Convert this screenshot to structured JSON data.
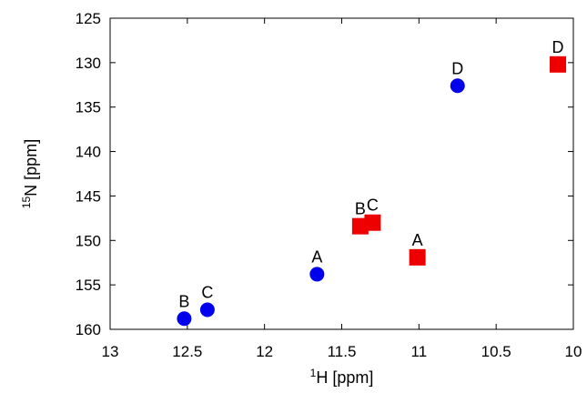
{
  "chart_data": {
    "type": "scatter",
    "title": "",
    "xlabel": {
      "sup": "1",
      "main": "H [ppm]"
    },
    "ylabel": {
      "sup": "15",
      "main": "N [ppm]"
    },
    "xlim": [
      13,
      10
    ],
    "ylim": [
      160,
      125
    ],
    "x_reversed": true,
    "y_reversed": true,
    "x_ticks": [
      13,
      12.5,
      12,
      11.5,
      11,
      10.5,
      10
    ],
    "x_tick_labels": [
      "13",
      "12.5",
      "12",
      "11.5",
      "11",
      "10.5",
      "10"
    ],
    "y_ticks": [
      125,
      130,
      135,
      140,
      145,
      150,
      155,
      160
    ],
    "y_tick_labels": [
      "125",
      "130",
      "135",
      "140",
      "145",
      "150",
      "155",
      "160"
    ],
    "grid": false,
    "legend": "none",
    "series": [
      {
        "marker": "circle",
        "color": "#0000ee",
        "points": [
          {
            "label": "B",
            "x": 12.52,
            "y": 158.8
          },
          {
            "label": "C",
            "x": 12.37,
            "y": 157.8
          },
          {
            "label": "A",
            "x": 11.66,
            "y": 153.8
          },
          {
            "label": "D",
            "x": 10.75,
            "y": 132.6
          }
        ]
      },
      {
        "marker": "square",
        "color": "#ee0000",
        "points": [
          {
            "label": "B",
            "x": 11.38,
            "y": 148.4
          },
          {
            "label": "C",
            "x": 11.3,
            "y": 148.0
          },
          {
            "label": "A",
            "x": 11.01,
            "y": 151.9
          },
          {
            "label": "D",
            "x": 10.1,
            "y": 130.2
          }
        ]
      }
    ]
  }
}
